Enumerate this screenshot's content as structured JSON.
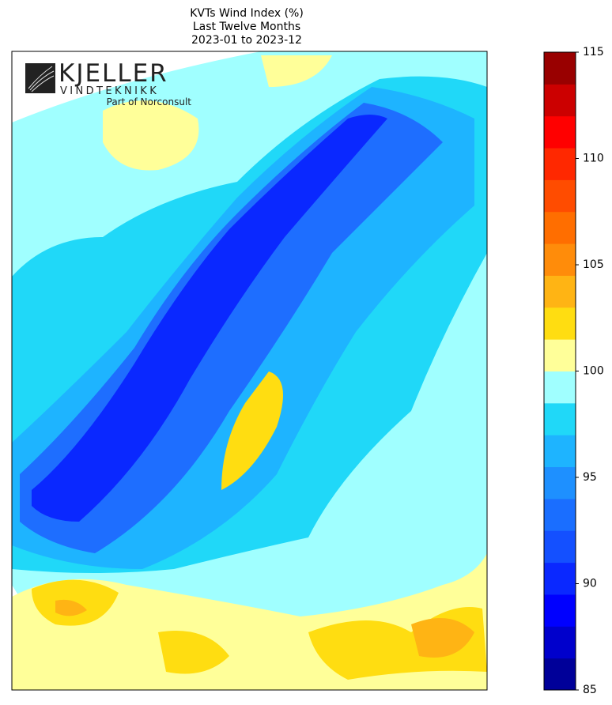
{
  "title": [
    "KVTs Wind Index (%)",
    "Last Twelve Months",
    "2023-01 to 2023-12"
  ],
  "logo": {
    "name": "KJELLER",
    "subname": "VINDTEKNIKK",
    "tagline": "Part of Norconsult"
  },
  "colorbar": {
    "lim": [
      85,
      115
    ],
    "ticks": [
      85,
      90,
      95,
      100,
      105,
      110,
      115
    ],
    "levels": [
      85,
      86.5,
      88,
      89.5,
      91,
      92.5,
      94,
      95.5,
      97,
      98.5,
      100,
      101.5,
      103,
      104.5,
      106,
      107.5,
      109,
      110.5,
      112,
      113.5,
      115
    ],
    "colors": [
      "#000099",
      "#0000cc",
      "#0000ff",
      "#0a28ff",
      "#1450ff",
      "#1a6eff",
      "#1e90ff",
      "#1eb4ff",
      "#20d8f8",
      "#a0ffff",
      "#ffff99",
      "#ffdd11",
      "#ffb414",
      "#ff8c0a",
      "#ff6e00",
      "#ff4c00",
      "#ff2800",
      "#ff0000",
      "#cc0000",
      "#990000"
    ]
  }
}
